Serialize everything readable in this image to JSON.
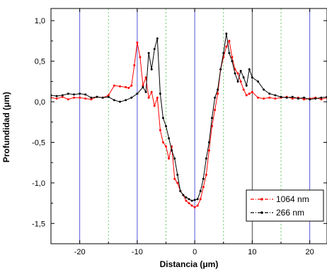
{
  "chart_data": {
    "type": "line",
    "title": "",
    "xlabel": "Distancia (μm)",
    "ylabel": "Profundidad (μm)",
    "xlim": [
      -25,
      23
    ],
    "ylim": [
      -1.75,
      1.15
    ],
    "x_ticks": [
      -20,
      -10,
      0,
      10,
      20
    ],
    "x_tick_labels": [
      "-20",
      "-10",
      "0",
      "10",
      "20"
    ],
    "y_ticks": [
      1.0,
      0.5,
      0.0,
      -0.5,
      -1.0,
      -1.5
    ],
    "y_tick_labels": [
      "1,0",
      "0,5",
      "0,0",
      "-0,5",
      "-1,0",
      "-1,5"
    ],
    "legend_position": "bottom-right",
    "grid": {
      "solid_vertical_x": [
        -20,
        -10,
        0,
        10,
        20
      ],
      "dotted_vertical_x": [
        -15,
        -5,
        5,
        15
      ],
      "solid_color": "#5555dd",
      "solid_color_at_10": "#444444",
      "dotted_color": "#66cc66"
    },
    "series": [
      {
        "name": "1064 nm",
        "color": "#ff0000",
        "x": [
          -25,
          -24,
          -23,
          -22,
          -21,
          -20,
          -19,
          -18,
          -17,
          -16,
          -15,
          -14,
          -13,
          -12,
          -11.5,
          -11,
          -10.5,
          -10,
          -9.5,
          -9,
          -8.5,
          -8,
          -7.5,
          -7,
          -6.5,
          -6,
          -5.5,
          -5,
          -4.5,
          -4,
          -3.5,
          -3,
          -2.5,
          -2,
          -1.5,
          -1,
          -0.5,
          0,
          0.5,
          1,
          1.5,
          2,
          2.5,
          3,
          3.5,
          4,
          4.5,
          5,
          5.5,
          6,
          6.5,
          7,
          7.5,
          8,
          8.5,
          9,
          9.5,
          10,
          11,
          12,
          13,
          14,
          15,
          16,
          17,
          18,
          19,
          20,
          21,
          22,
          23
        ],
        "y": [
          0.05,
          0.04,
          0.06,
          0.03,
          0.05,
          0.05,
          0.04,
          0.03,
          0.06,
          0.05,
          0.08,
          0.2,
          0.19,
          0.18,
          0.17,
          0.2,
          0.45,
          0.73,
          0.55,
          0.2,
          0.3,
          0.05,
          0.12,
          -0.05,
          0.05,
          -0.35,
          -0.5,
          -0.55,
          -0.7,
          -0.55,
          -0.95,
          -1.0,
          -1.1,
          -1.15,
          -1.22,
          -1.25,
          -1.28,
          -1.3,
          -1.28,
          -1.2,
          -1.05,
          -0.9,
          -0.6,
          -0.3,
          -0.1,
          0.1,
          0.4,
          0.55,
          0.68,
          0.75,
          0.55,
          0.4,
          0.35,
          0.25,
          0.15,
          0.08,
          0.1,
          0.12,
          0.05,
          0.04,
          0.05,
          0.04,
          0.05,
          0.06,
          0.04,
          0.05,
          0.03,
          0.04,
          0.05,
          0.03,
          0.05
        ]
      },
      {
        "name": "266 nm",
        "color": "#000000",
        "x": [
          -25,
          -24,
          -23,
          -22,
          -21,
          -20,
          -19,
          -18,
          -17,
          -16,
          -15,
          -14,
          -13,
          -12,
          -11,
          -10,
          -9,
          -8.5,
          -8,
          -7.5,
          -7,
          -6.5,
          -6,
          -5.5,
          -5,
          -4.5,
          -4,
          -3.5,
          -3,
          -2.5,
          -2,
          -1.5,
          -1,
          -0.5,
          0,
          0.5,
          1,
          1.5,
          2,
          2.5,
          3,
          3.5,
          4,
          4.5,
          5,
          5.5,
          6,
          6.5,
          7,
          7.5,
          8,
          8.5,
          9,
          9.5,
          10,
          11,
          12,
          13,
          14,
          15,
          16,
          17,
          18,
          19,
          20,
          21,
          22,
          23
        ],
        "y": [
          0.08,
          0.07,
          0.08,
          0.1,
          0.09,
          0.1,
          0.09,
          0.05,
          0.06,
          0.05,
          0.06,
          0.02,
          0.0,
          0.02,
          0.05,
          0.1,
          0.18,
          0.12,
          0.6,
          0.4,
          0.65,
          0.78,
          0.1,
          -0.2,
          -0.3,
          -0.45,
          -0.6,
          -0.7,
          -0.9,
          -1.1,
          -1.15,
          -1.18,
          -1.2,
          -1.22,
          -1.21,
          -1.2,
          -1.1,
          -0.95,
          -0.7,
          -0.5,
          -0.2,
          0.05,
          0.15,
          0.4,
          0.6,
          0.84,
          0.6,
          0.5,
          0.35,
          0.25,
          0.38,
          0.3,
          0.2,
          0.4,
          0.3,
          0.25,
          0.15,
          0.1,
          0.08,
          0.06,
          0.05,
          0.06,
          0.04,
          0.05,
          0.03,
          0.04,
          0.05,
          0.06
        ]
      }
    ]
  }
}
